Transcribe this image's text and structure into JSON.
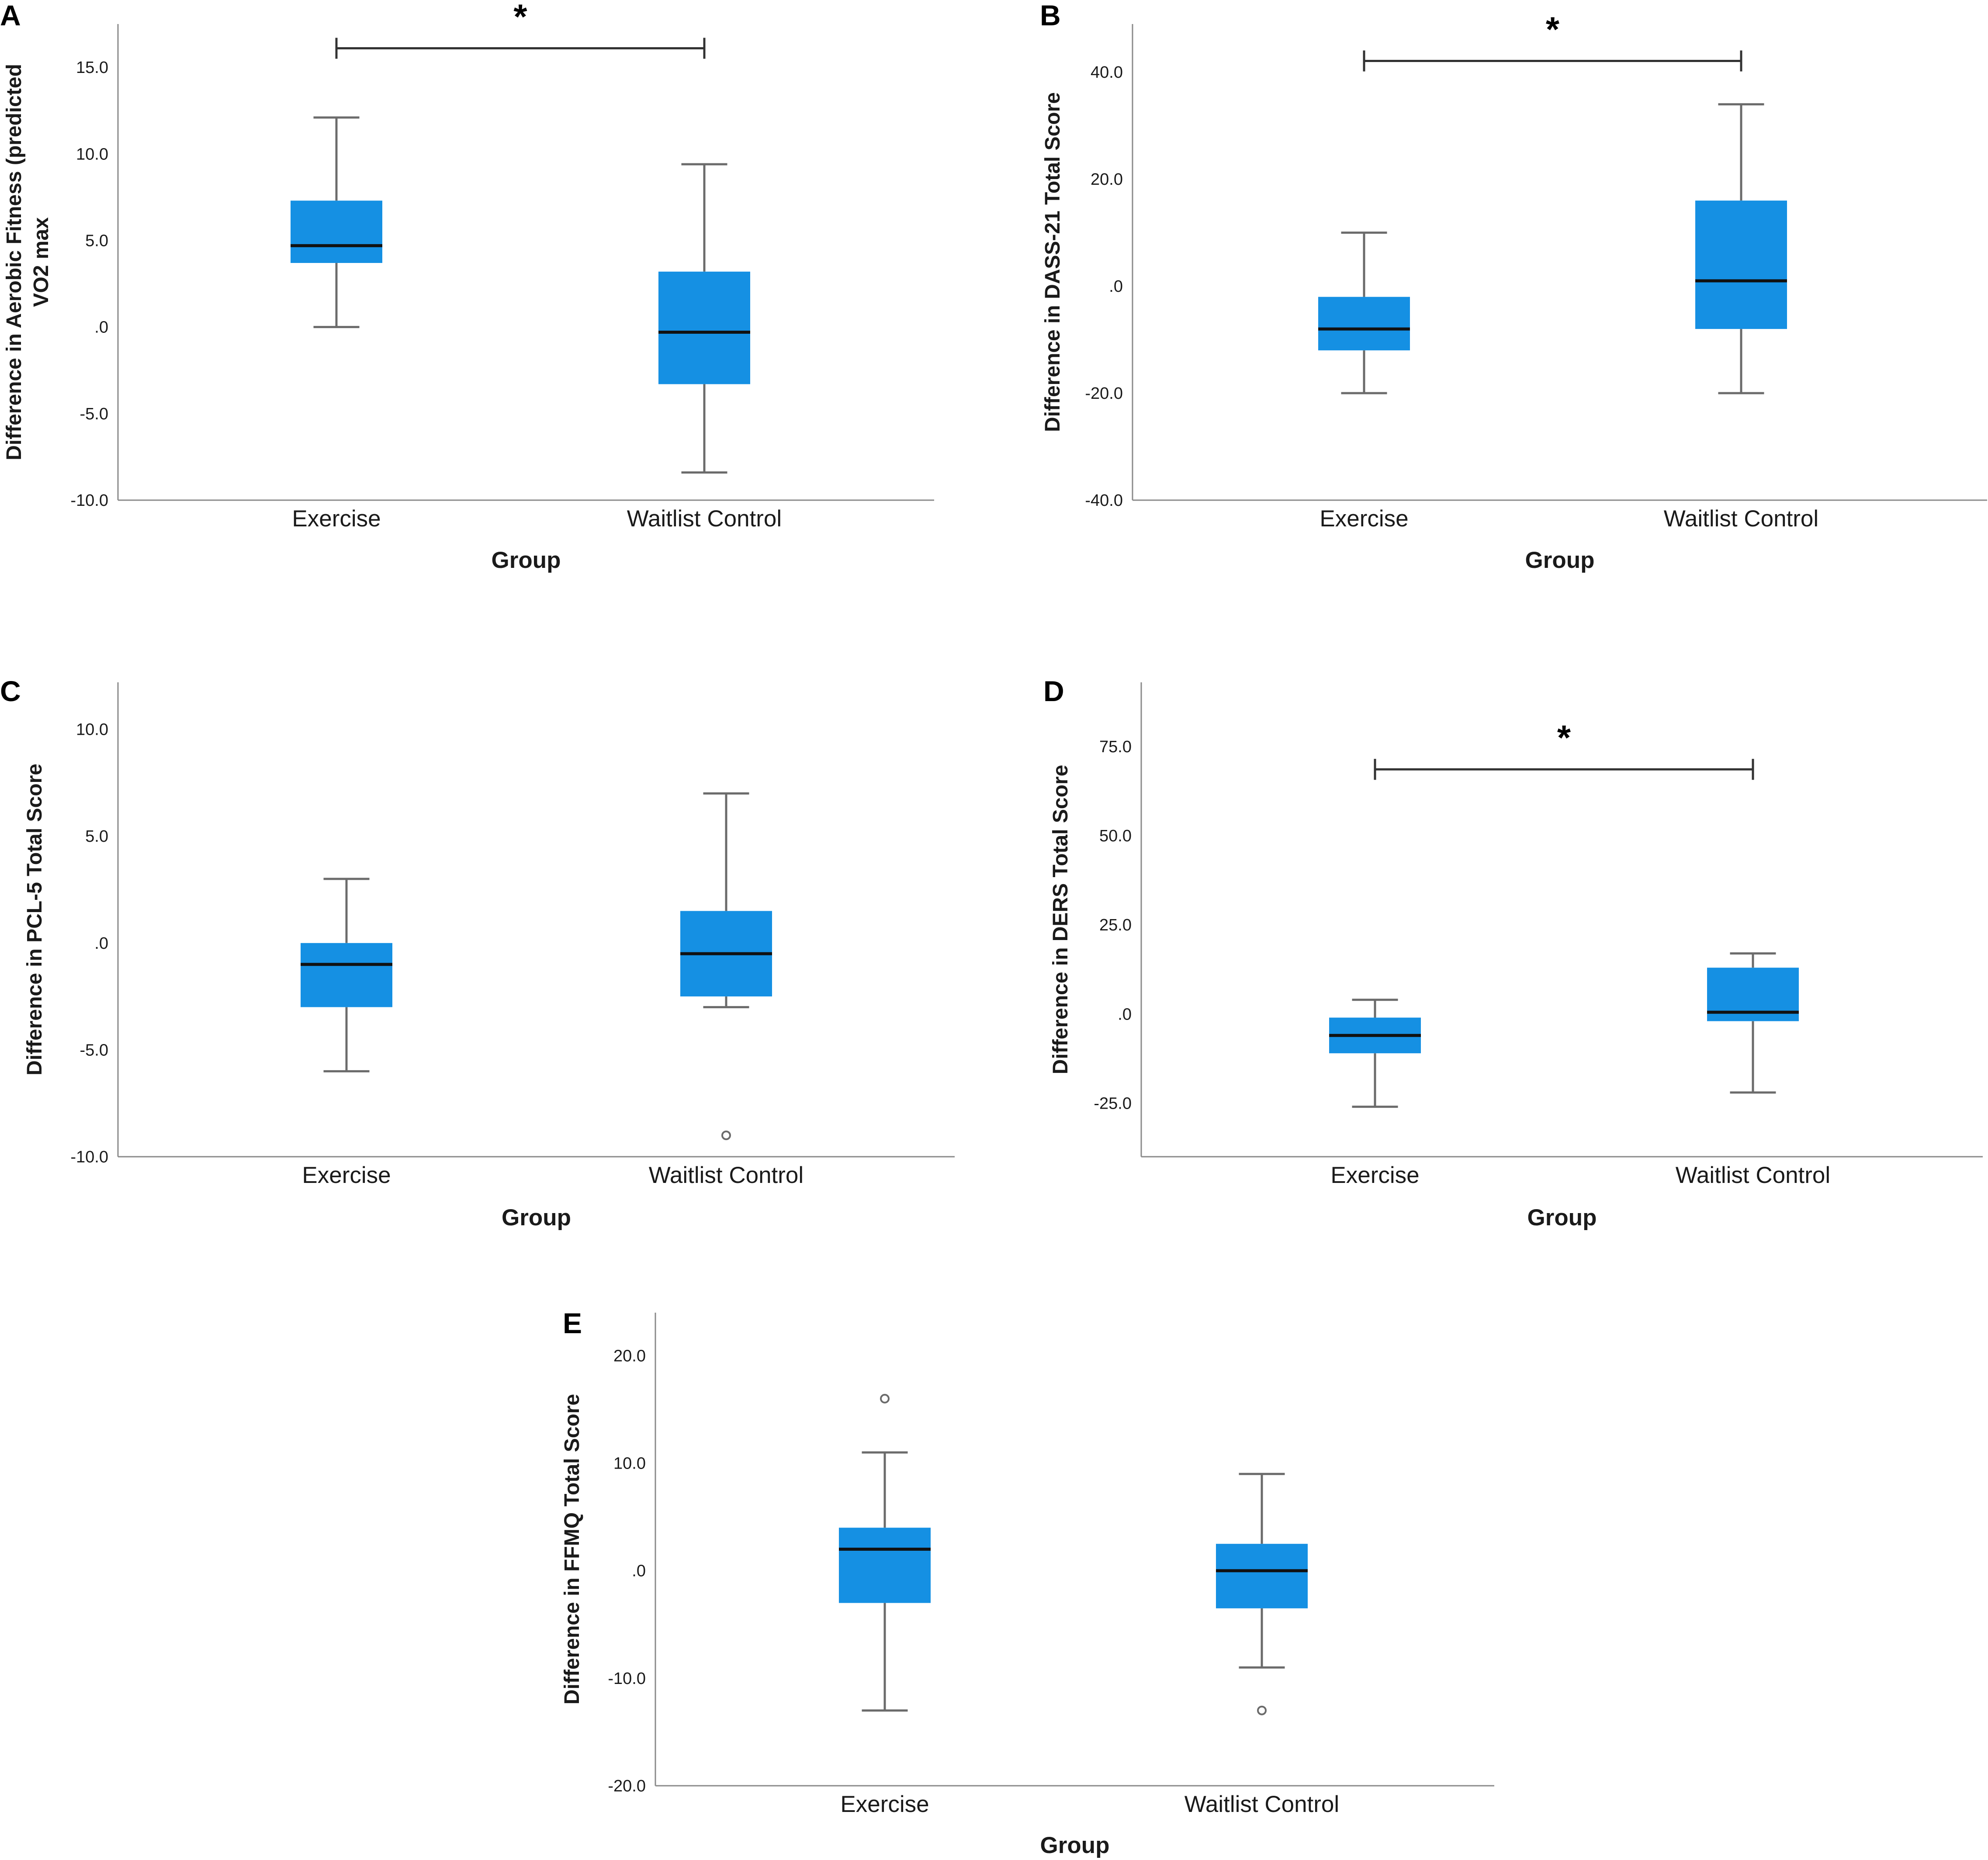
{
  "colors": {
    "box_fill": "#1590e3",
    "axis": "#8a8a8a",
    "whisker": "#6b6b6b",
    "median": "#111111",
    "text": "#1a1a1a",
    "bracket": "#333333"
  },
  "chart_data": [
    {
      "panel": "A",
      "type": "box",
      "title": "",
      "xlabel": "Group",
      "ylabel_lines": [
        "Difference in Aerobic Fitness (predicted",
        "VO2 max"
      ],
      "ylim": [
        -10,
        17.5
      ],
      "yticks": [
        {
          "value": 15,
          "label": "15.0"
        },
        {
          "value": 10,
          "label": "10.0"
        },
        {
          "value": 5,
          "label": "5.0"
        },
        {
          "value": 0,
          "label": ".0"
        },
        {
          "value": -5,
          "label": "-5.0"
        },
        {
          "value": -10,
          "label": "-10.0"
        }
      ],
      "categories": [
        "Exercise",
        "Waitlist Control"
      ],
      "boxes": [
        {
          "category": "Exercise",
          "whisker_low": 0.0,
          "q1": 3.7,
          "median": 4.7,
          "q3": 7.3,
          "whisker_high": 12.1,
          "outliers": []
        },
        {
          "category": "Waitlist Control",
          "whisker_low": -8.4,
          "q1": -3.3,
          "median": -0.3,
          "q3": 3.2,
          "whisker_high": 9.4,
          "outliers": []
        }
      ],
      "significance": {
        "label": "*",
        "from": "Exercise",
        "to": "Waitlist Control",
        "y": 16.1
      }
    },
    {
      "panel": "B",
      "type": "box",
      "title": "",
      "xlabel": "Group",
      "ylabel_lines": [
        "Difference in DASS-21 Total Score"
      ],
      "ylim": [
        -40,
        49
      ],
      "yticks": [
        {
          "value": 40,
          "label": "40.0"
        },
        {
          "value": 20,
          "label": "20.0"
        },
        {
          "value": 0,
          "label": ".0"
        },
        {
          "value": -20,
          "label": "-20.0"
        },
        {
          "value": -40,
          "label": "-40.0"
        }
      ],
      "categories": [
        "Exercise",
        "Waitlist Control"
      ],
      "boxes": [
        {
          "category": "Exercise",
          "whisker_low": -20,
          "q1": -12,
          "median": -8,
          "q3": -2,
          "whisker_high": 10,
          "outliers": []
        },
        {
          "category": "Waitlist Control",
          "whisker_low": -20,
          "q1": -8,
          "median": 1,
          "q3": 16,
          "whisker_high": 34,
          "outliers": []
        }
      ],
      "significance": {
        "label": "*",
        "from": "Exercise",
        "to": "Waitlist Control",
        "y": 42.1
      }
    },
    {
      "panel": "C",
      "type": "box",
      "title": "",
      "xlabel": "Group",
      "ylabel_lines": [
        "Difference in PCL-5 Total Score"
      ],
      "ylim": [
        -10,
        12.2
      ],
      "yticks": [
        {
          "value": 10,
          "label": "10.0"
        },
        {
          "value": 5,
          "label": "5.0"
        },
        {
          "value": 0,
          "label": ".0"
        },
        {
          "value": -5,
          "label": "-5.0"
        },
        {
          "value": -10,
          "label": "-10.0"
        }
      ],
      "categories": [
        "Exercise",
        "Waitlist Control"
      ],
      "boxes": [
        {
          "category": "Exercise",
          "whisker_low": -6,
          "q1": -3,
          "median": -1,
          "q3": 0,
          "whisker_high": 3,
          "outliers": []
        },
        {
          "category": "Waitlist Control",
          "whisker_low": -3,
          "q1": -2.5,
          "median": -0.5,
          "q3": 1.5,
          "whisker_high": 7,
          "outliers": [
            -9
          ]
        }
      ],
      "significance": null
    },
    {
      "panel": "D",
      "type": "box",
      "title": "",
      "xlabel": "Group",
      "ylabel_lines": [
        "Difference in DERS Total Score"
      ],
      "ylim": [
        -40,
        93
      ],
      "yticks": [
        {
          "value": 75,
          "label": "75.0"
        },
        {
          "value": 50,
          "label": "50.0"
        },
        {
          "value": 25,
          "label": "25.0"
        },
        {
          "value": 0,
          "label": ".0"
        },
        {
          "value": -25,
          "label": "-25.0"
        }
      ],
      "categories": [
        "Exercise",
        "Waitlist Control"
      ],
      "boxes": [
        {
          "category": "Exercise",
          "whisker_low": -26,
          "q1": -11,
          "median": -6,
          "q3": -1,
          "whisker_high": 4,
          "outliers": []
        },
        {
          "category": "Waitlist Control",
          "whisker_low": -22,
          "q1": -2,
          "median": 0.5,
          "q3": 13,
          "whisker_high": 17,
          "outliers": []
        }
      ],
      "significance": {
        "label": "*",
        "from": "Exercise",
        "to": "Waitlist Control",
        "y": 68.6
      }
    },
    {
      "panel": "E",
      "type": "box",
      "title": "",
      "xlabel": "Group",
      "ylabel_lines": [
        "Difference in FFMQ Total Score"
      ],
      "ylim": [
        -20,
        24
      ],
      "yticks": [
        {
          "value": 20,
          "label": "20.0"
        },
        {
          "value": 10,
          "label": "10.0"
        },
        {
          "value": 0,
          "label": ".0"
        },
        {
          "value": -10,
          "label": "-10.0"
        },
        {
          "value": -20,
          "label": "-20.0"
        }
      ],
      "categories": [
        "Exercise",
        "Waitlist Control"
      ],
      "boxes": [
        {
          "category": "Exercise",
          "whisker_low": -13,
          "q1": -3,
          "median": 2,
          "q3": 4,
          "whisker_high": 11,
          "outliers": [
            16
          ]
        },
        {
          "category": "Waitlist Control",
          "whisker_low": -9,
          "q1": -3.5,
          "median": 0,
          "q3": 2.5,
          "whisker_high": 9,
          "outliers": [
            -13
          ]
        }
      ],
      "significance": null
    }
  ]
}
